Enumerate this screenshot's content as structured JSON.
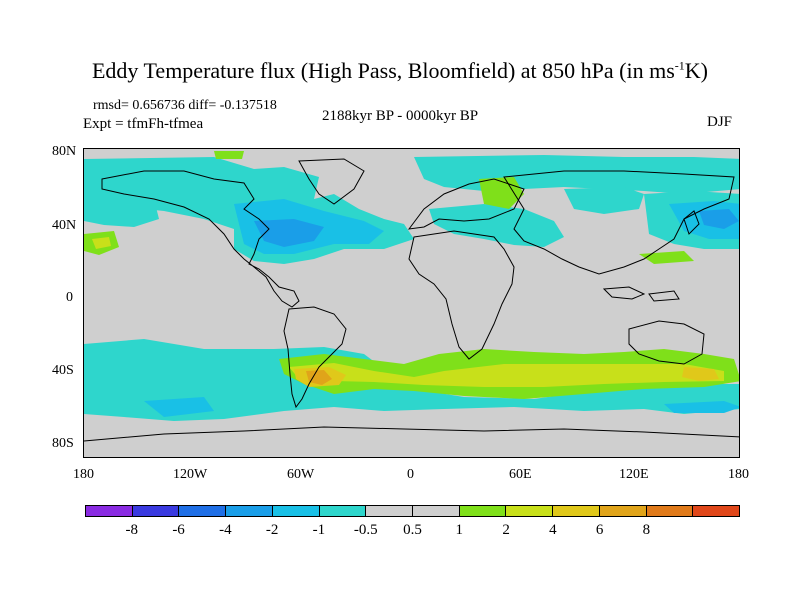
{
  "title": {
    "main": "Eddy Temperature flux (High Pass, Bloomfield) at 850 hPa (in ms",
    "sup": "-1",
    "end": "K)"
  },
  "stats": "rmsd= 0.656736 diff= -0.137518",
  "expt": "Expt = tfmFh-tfmea",
  "period": "2188kyr BP - 0000kyr BP",
  "season": "DJF",
  "y_ticks": [
    "80N",
    "40N",
    "0",
    "40S",
    "80S"
  ],
  "x_ticks": [
    "180",
    "120W",
    "60W",
    "0",
    "60E",
    "120E",
    "180"
  ],
  "colorbar": {
    "colors": [
      "#8a2be2",
      "#3a3ae0",
      "#1f6fe6",
      "#1a9ee8",
      "#19c0e6",
      "#2ed6cc",
      "#cfcfcf",
      "#cfcfcf",
      "#7fe01a",
      "#c8e01a",
      "#e0c81a",
      "#e0a41a",
      "#e07a1a",
      "#e0471a"
    ],
    "labels": [
      "-8",
      "-6",
      "-4",
      "-2",
      "-1",
      "-0.5",
      "0.5",
      "1",
      "2",
      "4",
      "6",
      "8"
    ]
  },
  "palette": {
    "land_sea": "#cfcfcf",
    "cyan": "#2ed6cc",
    "light_blue": "#19c0e6",
    "blue": "#1a9ee8",
    "dark_blue": "#1f6fe6",
    "green": "#7fe01a",
    "yellow_green": "#c8e01a",
    "yellow": "#e0c81a",
    "orange": "#e0a41a"
  }
}
